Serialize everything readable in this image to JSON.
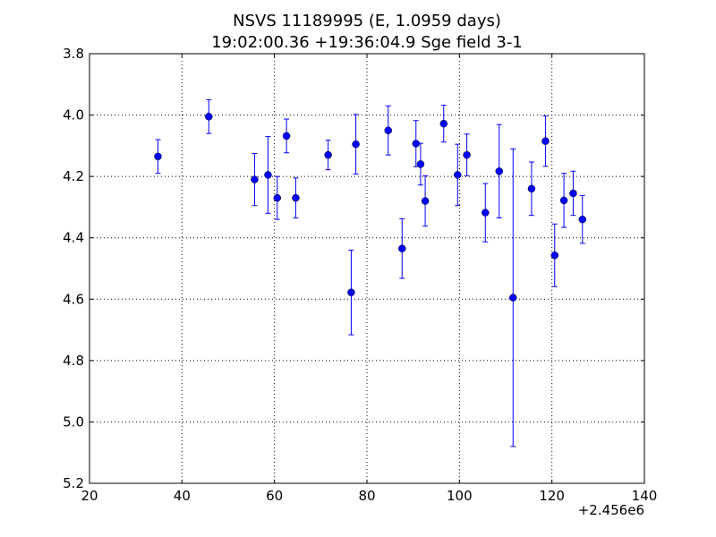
{
  "chart_data": {
    "type": "scatter",
    "title_line1": "NSVS 11189995 (E, 1.0959 days)",
    "title_line2": "19:02:00.36 +19:36:04.9 Sge field 3-1",
    "xlabel": "",
    "ylabel": "",
    "x_offset_label": "+2.456e6",
    "xlim": [
      20,
      140
    ],
    "ylim": [
      3.8,
      5.2
    ],
    "y_inverted": true,
    "grid": true,
    "x_ticks": [
      20,
      40,
      60,
      80,
      100,
      120,
      140
    ],
    "x_tick_labels": [
      "20",
      "40",
      "60",
      "80",
      "100",
      "120",
      "140"
    ],
    "y_ticks": [
      3.8,
      4.0,
      4.2,
      4.4,
      4.6,
      4.8,
      5.0,
      5.2
    ],
    "y_tick_labels": [
      "3.8",
      "4.0",
      "4.2",
      "4.4",
      "4.6",
      "4.8",
      "5.0",
      "5.2"
    ],
    "marker_color": "#0000ff",
    "points": [
      {
        "x": 34.8,
        "y": 4.135,
        "err": 0.055
      },
      {
        "x": 45.8,
        "y": 4.005,
        "err": 0.055
      },
      {
        "x": 55.7,
        "y": 4.21,
        "err": 0.085
      },
      {
        "x": 58.6,
        "y": 4.195,
        "err": 0.125
      },
      {
        "x": 60.6,
        "y": 4.27,
        "err": 0.07
      },
      {
        "x": 62.6,
        "y": 4.068,
        "err": 0.055
      },
      {
        "x": 64.6,
        "y": 4.27,
        "err": 0.065
      },
      {
        "x": 71.6,
        "y": 4.13,
        "err": 0.048
      },
      {
        "x": 76.6,
        "y": 4.578,
        "err": 0.138
      },
      {
        "x": 77.6,
        "y": 4.095,
        "err": 0.097
      },
      {
        "x": 84.6,
        "y": 4.05,
        "err": 0.08
      },
      {
        "x": 87.6,
        "y": 4.435,
        "err": 0.097
      },
      {
        "x": 90.6,
        "y": 4.093,
        "err": 0.075
      },
      {
        "x": 91.6,
        "y": 4.16,
        "err": 0.068
      },
      {
        "x": 92.6,
        "y": 4.28,
        "err": 0.082
      },
      {
        "x": 96.6,
        "y": 4.028,
        "err": 0.06
      },
      {
        "x": 99.6,
        "y": 4.195,
        "err": 0.1
      },
      {
        "x": 101.6,
        "y": 4.13,
        "err": 0.068
      },
      {
        "x": 105.6,
        "y": 4.318,
        "err": 0.095
      },
      {
        "x": 108.6,
        "y": 4.183,
        "err": 0.152
      },
      {
        "x": 111.6,
        "y": 4.595,
        "err": 0.485
      },
      {
        "x": 115.6,
        "y": 4.24,
        "err": 0.087
      },
      {
        "x": 118.6,
        "y": 4.085,
        "err": 0.082
      },
      {
        "x": 120.6,
        "y": 4.457,
        "err": 0.102
      },
      {
        "x": 122.6,
        "y": 4.278,
        "err": 0.088
      },
      {
        "x": 124.6,
        "y": 4.255,
        "err": 0.072
      },
      {
        "x": 126.6,
        "y": 4.34,
        "err": 0.078
      }
    ]
  }
}
